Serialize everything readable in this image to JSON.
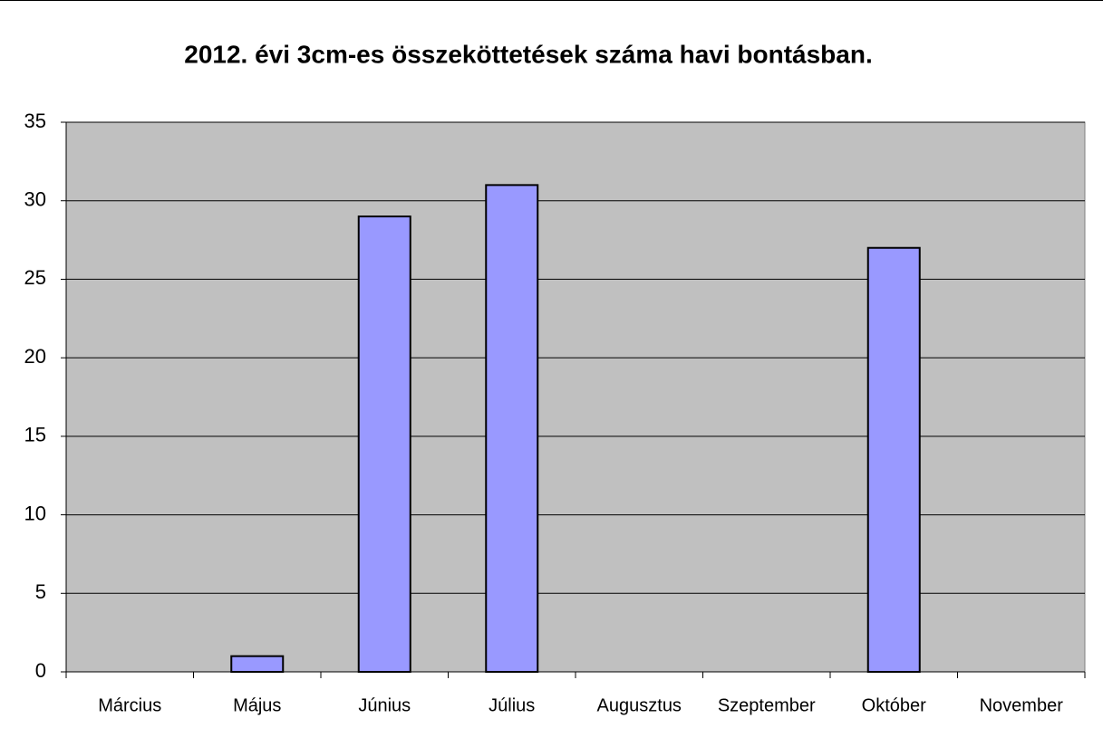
{
  "chart_data": {
    "type": "bar",
    "title": "2012. évi 3cm-es összeköttetések száma havi bontásban.",
    "categories": [
      "Március",
      "Május",
      "Június",
      "Július",
      "Augusztus",
      "Szeptember",
      "Október",
      "November"
    ],
    "values": [
      0,
      1,
      29,
      31,
      0,
      0,
      27,
      0
    ],
    "color": "#9999ff",
    "ylim": [
      0,
      35
    ],
    "yticks": [
      0,
      5,
      10,
      15,
      20,
      25,
      30,
      35
    ],
    "grid": true
  }
}
